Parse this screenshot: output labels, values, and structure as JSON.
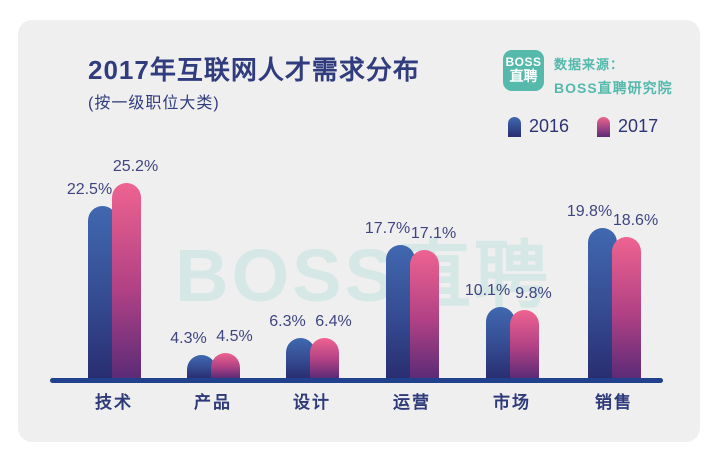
{
  "header": {
    "title": "2017年互联网人才需求分布",
    "subtitle": "(按一级职位大类)"
  },
  "branding": {
    "logo_line1": "BOSS",
    "logo_line2": "直聘",
    "source_line1": "数据来源：",
    "source_line2": "BOSS直聘研究院",
    "watermark_text": "BOSS直聘",
    "brand_teal": "#55b9ac"
  },
  "colors": {
    "card_background": "#efeff0",
    "title_navy": "#313c7e",
    "axis_line": "#22418d",
    "value_label": "#3f4580",
    "watermark": "#d5e8e5"
  },
  "chart_data": {
    "type": "bar",
    "title": "2017年互联网人才需求分布",
    "subtitle": "(按一级职位大类)",
    "categories": [
      "技术",
      "产品",
      "设计",
      "运营",
      "市场",
      "销售"
    ],
    "series": [
      {
        "name": "2016",
        "values": [
          22.5,
          4.3,
          6.3,
          17.7,
          10.1,
          19.8
        ],
        "color_top": "#4068b0",
        "color_mid": "#354b91",
        "color_bottom": "#292e71"
      },
      {
        "name": "2017",
        "values": [
          25.2,
          4.5,
          6.4,
          17.1,
          9.8,
          18.6
        ],
        "color_top": "#ee6390",
        "color_mid": "#b04184",
        "color_bottom": "#5c2b77"
      }
    ],
    "unit": "%",
    "value_labels": true,
    "ylim": [
      0,
      27
    ],
    "grid": false,
    "legend_position": "top-right",
    "data_labels": {
      "2016": [
        "22.5%",
        "4.3%",
        "6.3%",
        "17.7%",
        "10.1%",
        "19.8%"
      ],
      "2017": [
        "25.2%",
        "4.5%",
        "6.4%",
        "17.1%",
        "9.8%",
        "18.6%"
      ]
    }
  }
}
